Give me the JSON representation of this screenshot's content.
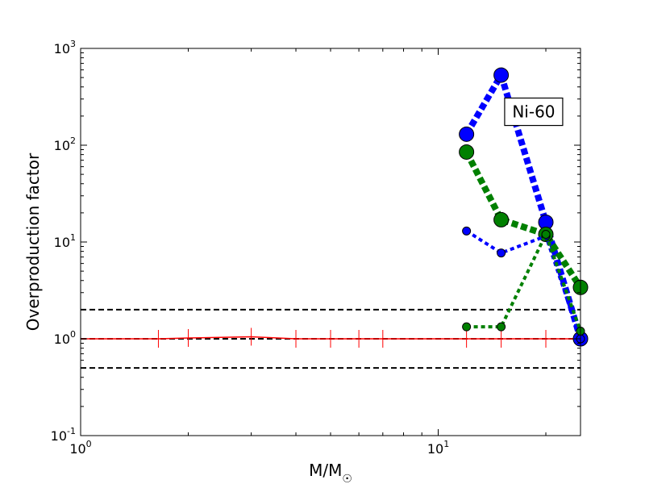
{
  "chart_data": {
    "type": "scatter",
    "title": "",
    "xlabel": "M/M",
    "xlabel_symbol": "☉",
    "ylabel": "Overproduction factor",
    "xscale": "log",
    "yscale": "log",
    "xlim": [
      1,
      25
    ],
    "ylim": [
      0.1,
      1000
    ],
    "grid": false,
    "x_ticks": [
      {
        "value": 1,
        "base": "10",
        "exp": "0"
      },
      {
        "value": 10,
        "base": "10",
        "exp": "1"
      }
    ],
    "y_ticks": [
      {
        "value": 0.1,
        "base": "10",
        "exp": "-1"
      },
      {
        "value": 1,
        "base": "10",
        "exp": "0"
      },
      {
        "value": 10,
        "base": "10",
        "exp": "1"
      },
      {
        "value": 100,
        "base": "10",
        "exp": "2"
      },
      {
        "value": 1000,
        "base": "10",
        "exp": "3"
      }
    ],
    "annotation": {
      "text": "Ni-60",
      "x": 15.5,
      "y": 190
    },
    "reference_lines": [
      {
        "y": 2.0,
        "style": "dashed",
        "color": "#000000"
      },
      {
        "y": 1.0,
        "style": "dashed",
        "color": "#000000"
      },
      {
        "y": 0.5,
        "style": "dashed",
        "color": "#000000"
      }
    ],
    "series": [
      {
        "style": "solid-red",
        "color": "#ff0000",
        "marker": "vertical-tick",
        "x": [
          1.0,
          1.65,
          2.0,
          3.0,
          4.0,
          5.0,
          6.0,
          7.0,
          12.0,
          15.0,
          20.0,
          25.0
        ],
        "y": [
          1.0,
          1.0,
          1.02,
          1.05,
          1.0,
          1.0,
          1.0,
          1.0,
          1.0,
          1.0,
          1.0,
          1.0
        ]
      },
      {
        "style": "thick-dotted",
        "color": "#0000ff",
        "marker_size": "large",
        "x": [
          12,
          15,
          20,
          25
        ],
        "y": [
          130,
          530,
          16,
          1.0
        ]
      },
      {
        "style": "thick-dotted",
        "color": "#008000",
        "marker_size": "large",
        "x": [
          12,
          15,
          20,
          25
        ],
        "y": [
          85,
          17,
          12,
          3.4
        ]
      },
      {
        "style": "thin-dotted",
        "color": "#0000ff",
        "marker_size": "small",
        "x": [
          12,
          15,
          20,
          25
        ],
        "y": [
          13,
          7.7,
          11.5,
          1.0
        ]
      },
      {
        "style": "thin-dotted",
        "color": "#008000",
        "marker_size": "small",
        "x": [
          12,
          15,
          20,
          25
        ],
        "y": [
          1.33,
          1.33,
          12,
          1.2
        ]
      }
    ]
  }
}
